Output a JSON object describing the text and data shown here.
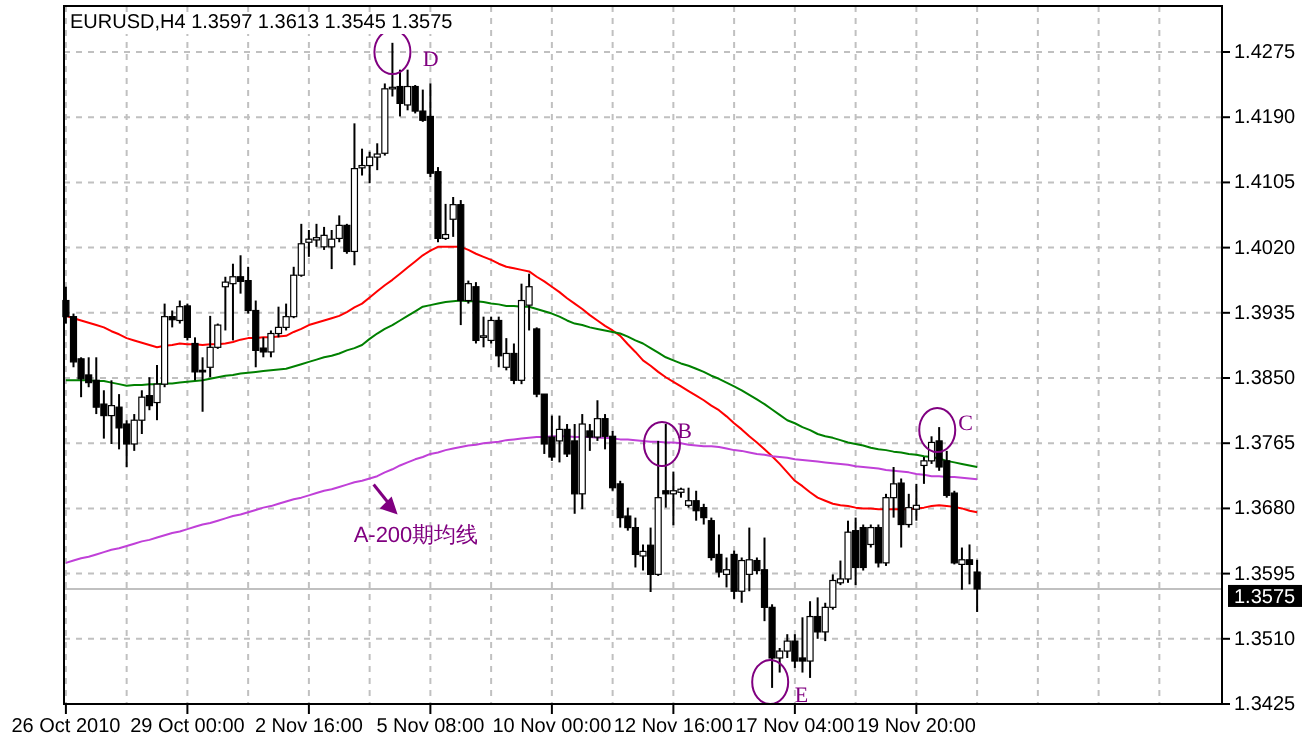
{
  "chart_data": {
    "type": "candlestick",
    "title": "EURUSD,H4 1.3597 1.3613 1.3545 1.3575",
    "categories": [
      "26 Oct 2010",
      null,
      null,
      null,
      null,
      null,
      null,
      null,
      null,
      null,
      null,
      null,
      null,
      null,
      null,
      null,
      "29 Oct 00:00",
      null,
      null,
      null,
      null,
      null,
      null,
      null,
      null,
      null,
      null,
      null,
      null,
      null,
      null,
      null,
      "2 Nov 16:00",
      null,
      null,
      null,
      null,
      null,
      null,
      null,
      null,
      null,
      null,
      null,
      null,
      null,
      null,
      null,
      "5 Nov 08:00",
      null,
      null,
      null,
      null,
      null,
      null,
      null,
      null,
      null,
      null,
      null,
      null,
      null,
      null,
      null,
      "10 Nov 00:00",
      null,
      null,
      null,
      null,
      null,
      null,
      null,
      null,
      null,
      null,
      null,
      null,
      null,
      null,
      null,
      "12 Nov 16:00",
      null,
      null,
      null,
      null,
      null,
      null,
      null,
      null,
      null,
      null,
      null,
      null,
      null,
      null,
      null,
      "17 Nov 04:00",
      null,
      null,
      null,
      null,
      null,
      null,
      null,
      null,
      null,
      null,
      null,
      null,
      null,
      null,
      null,
      "19 Nov 20:00",
      null,
      null,
      null,
      null,
      null,
      null,
      null,
      null
    ],
    "ohlc": [
      [
        1.3951,
        1.3969,
        1.3921,
        1.393
      ],
      [
        1.393,
        1.3934,
        1.3864,
        1.3871
      ],
      [
        1.3875,
        1.3877,
        1.3825,
        1.3849
      ],
      [
        1.3854,
        1.3877,
        1.3838,
        1.3844
      ],
      [
        1.3847,
        1.3877,
        1.3803,
        1.3812
      ],
      [
        1.3816,
        1.3834,
        1.3771,
        1.3801
      ],
      [
        1.3801,
        1.3847,
        1.3764,
        1.3814
      ],
      [
        1.3812,
        1.3829,
        1.3757,
        1.3785
      ],
      [
        1.379,
        1.3795,
        1.3734,
        1.3764
      ],
      [
        1.3764,
        1.3803,
        1.3755,
        1.3795
      ],
      [
        1.3795,
        1.3834,
        1.3777,
        1.3825
      ],
      [
        1.3827,
        1.3851,
        1.3808,
        1.3814
      ],
      [
        1.3818,
        1.3867,
        1.3795,
        1.3842
      ],
      [
        1.3842,
        1.3947,
        1.3838,
        1.393
      ],
      [
        1.393,
        1.3938,
        1.3916,
        1.3926
      ],
      [
        1.3925,
        1.3951,
        1.3921,
        1.3943
      ],
      [
        1.3944,
        1.3947,
        1.3899,
        1.3903
      ],
      [
        1.3895,
        1.3903,
        1.3847,
        1.3858
      ],
      [
        1.386,
        1.3877,
        1.3806,
        1.3858
      ],
      [
        1.3864,
        1.3931,
        1.3851,
        1.389
      ],
      [
        1.389,
        1.3921,
        1.3888,
        1.3919
      ],
      [
        1.3969,
        1.3982,
        1.3912,
        1.3975
      ],
      [
        1.3973,
        1.3999,
        1.3899,
        1.3982
      ],
      [
        1.3982,
        1.401,
        1.396,
        1.3976
      ],
      [
        1.3977,
        1.3995,
        1.3934,
        1.3938
      ],
      [
        1.3938,
        1.3951,
        1.3864,
        1.3886
      ],
      [
        1.3889,
        1.3903,
        1.3877,
        1.3884
      ],
      [
        1.3884,
        1.3912,
        1.3877,
        1.3908
      ],
      [
        1.3908,
        1.3943,
        1.3903,
        1.3916
      ],
      [
        1.3916,
        1.3947,
        1.3912,
        1.393
      ],
      [
        1.393,
        1.3995,
        1.3928,
        1.3984
      ],
      [
        1.3984,
        1.4051,
        1.3982,
        1.4025
      ],
      [
        1.4027,
        1.4043,
        1.4008,
        1.4031
      ],
      [
        1.403,
        1.4051,
        1.4021,
        1.4033
      ],
      [
        1.4021,
        1.4047,
        1.4017,
        1.4036
      ],
      [
        1.4021,
        1.4043,
        1.3992,
        1.4031
      ],
      [
        1.4032,
        1.4062,
        1.4027,
        1.4049
      ],
      [
        1.4049,
        1.4051,
        1.4012,
        1.4015
      ],
      [
        1.4015,
        1.4182,
        1.3997,
        1.4123
      ],
      [
        1.4124,
        1.4149,
        1.4114,
        1.4127
      ],
      [
        1.4127,
        1.4145,
        1.4104,
        1.4138
      ],
      [
        1.4138,
        1.4156,
        1.4121,
        1.4142
      ],
      [
        1.4143,
        1.4234,
        1.414,
        1.4227
      ],
      [
        1.4227,
        1.4287,
        1.4217,
        1.4229
      ],
      [
        1.423,
        1.4252,
        1.4191,
        1.4208
      ],
      [
        1.4206,
        1.4252,
        1.4199,
        1.423
      ],
      [
        1.423,
        1.4232,
        1.4195,
        1.4198
      ],
      [
        1.4198,
        1.4226,
        1.4184,
        1.4186
      ],
      [
        1.4191,
        1.4234,
        1.4112,
        1.4117
      ],
      [
        1.4119,
        1.4125,
        1.4027,
        1.4032
      ],
      [
        1.4032,
        1.4077,
        1.403,
        1.4037
      ],
      [
        1.4057,
        1.4086,
        1.4034,
        1.4076
      ],
      [
        1.4076,
        1.4082,
        1.3919,
        1.3951
      ],
      [
        1.3951,
        1.3977,
        1.3947,
        1.3973
      ],
      [
        1.3969,
        1.3975,
        1.3895,
        1.3899
      ],
      [
        1.3903,
        1.393,
        1.389,
        1.3905
      ],
      [
        1.3899,
        1.393,
        1.3895,
        1.3925
      ],
      [
        1.3925,
        1.393,
        1.3864,
        1.3879
      ],
      [
        1.3864,
        1.3902,
        1.386,
        1.3882
      ],
      [
        1.3882,
        1.3895,
        1.3842,
        1.3847
      ],
      [
        1.3847,
        1.3973,
        1.3842,
        1.3951
      ],
      [
        1.3945,
        1.3986,
        1.3912,
        1.3969
      ],
      [
        1.3914,
        1.3916,
        1.3825,
        1.3829
      ],
      [
        1.3829,
        1.3829,
        1.3751,
        1.3764
      ],
      [
        1.3773,
        1.3801,
        1.3742,
        1.3747
      ],
      [
        1.3768,
        1.3801,
        1.374,
        1.3783
      ],
      [
        1.3783,
        1.379,
        1.3747,
        1.3751
      ],
      [
        1.3768,
        1.379,
        1.3673,
        1.3699
      ],
      [
        1.3699,
        1.3803,
        1.3679,
        1.379
      ],
      [
        1.3781,
        1.379,
        1.3755,
        1.3773
      ],
      [
        1.3773,
        1.3821,
        1.3768,
        1.3797
      ],
      [
        1.3797,
        1.3803,
        1.3757,
        1.3774
      ],
      [
        1.3774,
        1.3781,
        1.3703,
        1.3707
      ],
      [
        1.3712,
        1.3716,
        1.3655,
        1.3668
      ],
      [
        1.367,
        1.3681,
        1.3651,
        1.3655
      ],
      [
        1.3655,
        1.3668,
        1.3603,
        1.362
      ],
      [
        1.3618,
        1.3633,
        1.3599,
        1.3624
      ],
      [
        1.3632,
        1.3655,
        1.3571,
        1.3594
      ],
      [
        1.3594,
        1.3768,
        1.3592,
        1.3694
      ],
      [
        1.3703,
        1.379,
        1.3681,
        1.3699
      ],
      [
        1.3699,
        1.3728,
        1.3658,
        1.3703
      ],
      [
        1.3701,
        1.3707,
        1.3694,
        1.3705
      ],
      [
        1.3684,
        1.3707,
        1.3681,
        1.369
      ],
      [
        1.369,
        1.3703,
        1.3664,
        1.3677
      ],
      [
        1.3681,
        1.3686,
        1.3659,
        1.3668
      ],
      [
        1.3664,
        1.3668,
        1.3612,
        1.3616
      ],
      [
        1.362,
        1.3646,
        1.359,
        1.3597
      ],
      [
        1.3594,
        1.3616,
        1.3577,
        1.36
      ],
      [
        1.362,
        1.3625,
        1.3562,
        1.3572
      ],
      [
        1.3572,
        1.3616,
        1.3557,
        1.3612
      ],
      [
        1.3594,
        1.3655,
        1.3572,
        1.3613
      ],
      [
        1.3612,
        1.3616,
        1.3594,
        1.3599
      ],
      [
        1.36,
        1.3642,
        1.3533,
        1.3551
      ],
      [
        1.3551,
        1.3555,
        1.3446,
        1.3485
      ],
      [
        1.3485,
        1.3498,
        1.3466,
        1.3494
      ],
      [
        1.3494,
        1.3516,
        1.3485,
        1.3507
      ],
      [
        1.3507,
        1.3516,
        1.3472,
        1.3481
      ],
      [
        1.3485,
        1.3538,
        1.3466,
        1.3481
      ],
      [
        1.3481,
        1.3559,
        1.3459,
        1.3539
      ],
      [
        1.3539,
        1.3564,
        1.351,
        1.3519
      ],
      [
        1.3519,
        1.3557,
        1.3507,
        1.3551
      ],
      [
        1.3551,
        1.3594,
        1.3548,
        1.3586
      ],
      [
        1.3583,
        1.3612,
        1.358,
        1.3588
      ],
      [
        1.3588,
        1.3664,
        1.3583,
        1.3649
      ],
      [
        1.3651,
        1.3668,
        1.358,
        1.3603
      ],
      [
        1.3655,
        1.3659,
        1.3599,
        1.3603
      ],
      [
        1.3633,
        1.3659,
        1.3629,
        1.3655
      ],
      [
        1.3655,
        1.3659,
        1.3603,
        1.3609
      ],
      [
        1.3609,
        1.3699,
        1.3605,
        1.3694
      ],
      [
        1.3694,
        1.3734,
        1.3668,
        1.3712
      ],
      [
        1.3713,
        1.3719,
        1.3629,
        1.3659
      ],
      [
        1.3659,
        1.3699,
        1.3655,
        1.3681
      ],
      [
        1.3679,
        1.3712,
        1.3664,
        1.3684
      ],
      [
        1.3736,
        1.3747,
        1.3712,
        1.3742
      ],
      [
        1.3742,
        1.3774,
        1.3738,
        1.3766
      ],
      [
        1.3768,
        1.3786,
        1.3729,
        1.3734
      ],
      [
        1.3742,
        1.3755,
        1.3694,
        1.3697
      ],
      [
        1.37,
        1.3703,
        1.3607,
        1.3609
      ],
      [
        1.3607,
        1.3629,
        1.3574,
        1.3613
      ],
      [
        1.3613,
        1.3633,
        1.3581,
        1.3607
      ],
      [
        1.3597,
        1.3613,
        1.3545,
        1.3575
      ]
    ],
    "series": [
      {
        "type": "line",
        "color": "#ff0000",
        "values": [
          1.3931,
          1.3928,
          1.3925,
          1.3922,
          1.3919,
          1.3916,
          1.3911,
          1.3907,
          1.3902,
          1.3899,
          1.3896,
          1.3893,
          1.389,
          1.3892,
          1.3893,
          1.3895,
          1.3894,
          1.3894,
          1.3893,
          1.3894,
          1.3894,
          1.3895,
          1.3897,
          1.39,
          1.3902,
          1.3902,
          1.3903,
          1.3903,
          1.3904,
          1.3905,
          1.391,
          1.3914,
          1.3919,
          1.3922,
          1.3925,
          1.3928,
          1.3931,
          1.3936,
          1.3942,
          1.3947,
          1.3955,
          1.3963,
          1.3971,
          1.3978,
          1.3986,
          1.3994,
          1.4002,
          1.401,
          1.4016,
          1.4021,
          1.4021,
          1.4021,
          1.4021,
          1.4017,
          1.4012,
          1.4008,
          1.4004,
          1.3999,
          1.3995,
          1.3993,
          1.3991,
          1.3989,
          1.3982,
          1.3976,
          1.3969,
          1.3962,
          1.3954,
          1.3947,
          1.394,
          1.3932,
          1.3925,
          1.3918,
          1.3912,
          1.3905,
          1.3894,
          1.3884,
          1.3873,
          1.3866,
          1.3858,
          1.3851,
          1.3845,
          1.3839,
          1.3833,
          1.3827,
          1.3821,
          1.3814,
          1.3808,
          1.38,
          1.3791,
          1.3783,
          1.3774,
          1.3766,
          1.3757,
          1.3748,
          1.3738,
          1.3727,
          1.3716,
          1.3709,
          1.3701,
          1.3694,
          1.369,
          1.3686,
          1.3684,
          1.3683,
          1.3681,
          1.368,
          1.368,
          1.3679,
          1.3679,
          1.3679,
          1.3679,
          1.3679,
          1.368,
          1.3681,
          1.3683,
          1.3684,
          1.3683,
          1.3682,
          1.368,
          1.3677,
          1.3675
        ]
      },
      {
        "type": "line",
        "color": "#008000",
        "values": [
          1.3847,
          1.3847,
          1.3847,
          1.3847,
          1.3846,
          1.3846,
          1.3844,
          1.3842,
          1.384,
          1.3841,
          1.3841,
          1.3842,
          1.3842,
          1.3843,
          1.3843,
          1.3844,
          1.3845,
          1.3846,
          1.3847,
          1.3849,
          1.3851,
          1.3853,
          1.3854,
          1.3856,
          1.3857,
          1.3858,
          1.3859,
          1.386,
          1.3861,
          1.3862,
          1.3865,
          1.3868,
          1.3871,
          1.3874,
          1.3877,
          1.3879,
          1.3882,
          1.3886,
          1.3889,
          1.3893,
          1.3901,
          1.3908,
          1.3914,
          1.3919,
          1.3925,
          1.3931,
          1.3937,
          1.3943,
          1.3945,
          1.3947,
          1.3949,
          1.395,
          1.3951,
          1.395,
          1.395,
          1.3949,
          1.3947,
          1.3946,
          1.3944,
          1.3944,
          1.3943,
          1.3943,
          1.394,
          1.3937,
          1.3934,
          1.393,
          1.3925,
          1.3921,
          1.3919,
          1.3916,
          1.3914,
          1.3912,
          1.391,
          1.3908,
          1.3904,
          1.3899,
          1.3895,
          1.3889,
          1.3883,
          1.3877,
          1.3873,
          1.3869,
          1.3866,
          1.3862,
          1.3858,
          1.3853,
          1.3849,
          1.3844,
          1.3839,
          1.3834,
          1.3828,
          1.3822,
          1.3816,
          1.3809,
          1.3802,
          1.3795,
          1.3791,
          1.3786,
          1.3782,
          1.3777,
          1.3774,
          1.3772,
          1.3769,
          1.3766,
          1.3764,
          1.3762,
          1.3759,
          1.3757,
          1.3756,
          1.3754,
          1.3753,
          1.3751,
          1.375,
          1.3748,
          1.3747,
          1.3745,
          1.3742,
          1.374,
          1.3738,
          1.3736,
          1.3734
        ]
      },
      {
        "type": "line",
        "color": "#c040d8",
        "name": "A-200期均线",
        "values": [
          1.3609,
          1.3612,
          1.3615,
          1.3617,
          1.362,
          1.3623,
          1.3626,
          1.3628,
          1.3631,
          1.3634,
          1.3637,
          1.3639,
          1.3642,
          1.3645,
          1.3648,
          1.365,
          1.3653,
          1.3656,
          1.3659,
          1.3661,
          1.3664,
          1.3667,
          1.367,
          1.3672,
          1.3675,
          1.3678,
          1.3681,
          1.3683,
          1.3686,
          1.3689,
          1.3692,
          1.3694,
          1.3697,
          1.37,
          1.3703,
          1.3705,
          1.3708,
          1.3711,
          1.3714,
          1.3716,
          1.3719,
          1.3722,
          1.3727,
          1.3731,
          1.3736,
          1.374,
          1.3744,
          1.3747,
          1.3751,
          1.3753,
          1.3756,
          1.3758,
          1.376,
          1.3762,
          1.3763,
          1.3765,
          1.3766,
          1.3767,
          1.3769,
          1.377,
          1.3771,
          1.3772,
          1.3773,
          1.3773,
          1.3774,
          1.3774,
          1.3774,
          1.3773,
          1.3773,
          1.3773,
          1.3772,
          1.3772,
          1.3771,
          1.377,
          1.377,
          1.3769,
          1.3768,
          1.3767,
          1.3767,
          1.3766,
          1.3766,
          1.3765,
          1.3763,
          1.3762,
          1.3761,
          1.3761,
          1.376,
          1.3758,
          1.3756,
          1.3755,
          1.3753,
          1.3751,
          1.375,
          1.3748,
          1.3747,
          1.3746,
          1.3744,
          1.3743,
          1.3742,
          1.3741,
          1.374,
          1.3739,
          1.3738,
          1.3737,
          1.3735,
          1.3734,
          1.3733,
          1.3732,
          1.373,
          1.3729,
          1.3728,
          1.3727,
          1.3725,
          1.3724,
          1.3722,
          1.3722,
          1.3721,
          1.3721,
          1.372,
          1.3719,
          1.3718
        ]
      }
    ],
    "ylim": [
      1.3425,
      1.4335
    ],
    "yticks": [
      {
        "value": 1.3425,
        "label": "1.3425"
      },
      {
        "value": 1.351,
        "label": "1.3510"
      },
      {
        "value": 1.3595,
        "label": "1.3595"
      },
      {
        "value": 1.368,
        "label": "1.3680"
      },
      {
        "value": 1.3765,
        "label": "1.3765"
      },
      {
        "value": 1.385,
        "label": "1.3850"
      },
      {
        "value": 1.3935,
        "label": "1.3935"
      },
      {
        "value": 1.402,
        "label": "1.4020"
      },
      {
        "value": 1.4105,
        "label": "1.4105"
      },
      {
        "value": 1.419,
        "label": "1.4190"
      },
      {
        "value": 1.4275,
        "label": "1.4275"
      }
    ],
    "grid": true,
    "ref_lines": [
      {
        "axis": "y",
        "value": 1.3575,
        "label": "1.3575",
        "color": "#c0c0c0"
      }
    ],
    "annotations": [
      "D",
      "B",
      "C",
      "E"
    ]
  }
}
